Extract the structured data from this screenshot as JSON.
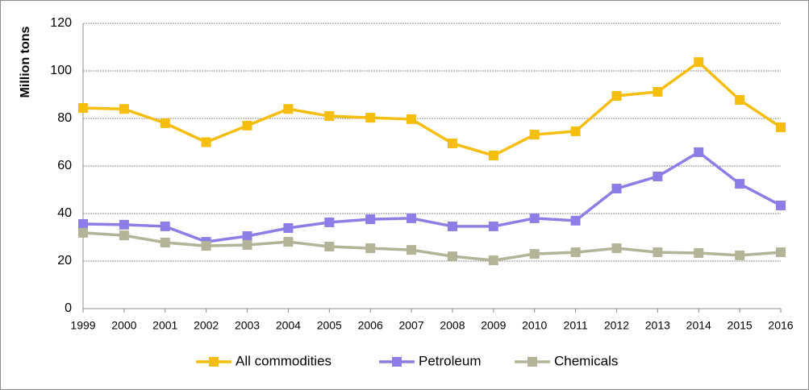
{
  "chart_data": {
    "type": "line",
    "ylabel": "Million tons",
    "categories": [
      "1999",
      "2000",
      "2001",
      "2002",
      "2003",
      "2004",
      "2005",
      "2006",
      "2007",
      "2008",
      "2009",
      "2010",
      "2011",
      "2012",
      "2013",
      "2014",
      "2015",
      "2016"
    ],
    "series": [
      {
        "name": "All commodities",
        "color": "#f5bd0c",
        "values": [
          84.4,
          84.0,
          78.0,
          70.0,
          77.0,
          84.0,
          81.0,
          80.3,
          79.7,
          69.5,
          64.4,
          73.2,
          74.6,
          89.5,
          91.2,
          103.7,
          87.8,
          76.3
        ]
      },
      {
        "name": "Petroleum",
        "color": "#8c7ee6",
        "values": [
          35.6,
          35.3,
          34.6,
          28.1,
          30.5,
          33.9,
          36.3,
          37.6,
          38.0,
          34.6,
          34.6,
          38.0,
          37.0,
          50.5,
          55.6,
          65.8,
          52.5,
          43.4
        ]
      },
      {
        "name": "Chemicals",
        "color": "#b3b397",
        "values": [
          31.9,
          30.8,
          27.8,
          26.4,
          26.8,
          28.1,
          26.1,
          25.4,
          24.7,
          22.0,
          20.3,
          23.0,
          23.7,
          25.4,
          23.7,
          23.4,
          22.4,
          23.7
        ]
      }
    ],
    "ylim": [
      0,
      120
    ],
    "yticks": [
      0,
      20,
      40,
      60,
      80,
      100,
      120
    ],
    "grid": true,
    "legend": "bottom"
  }
}
